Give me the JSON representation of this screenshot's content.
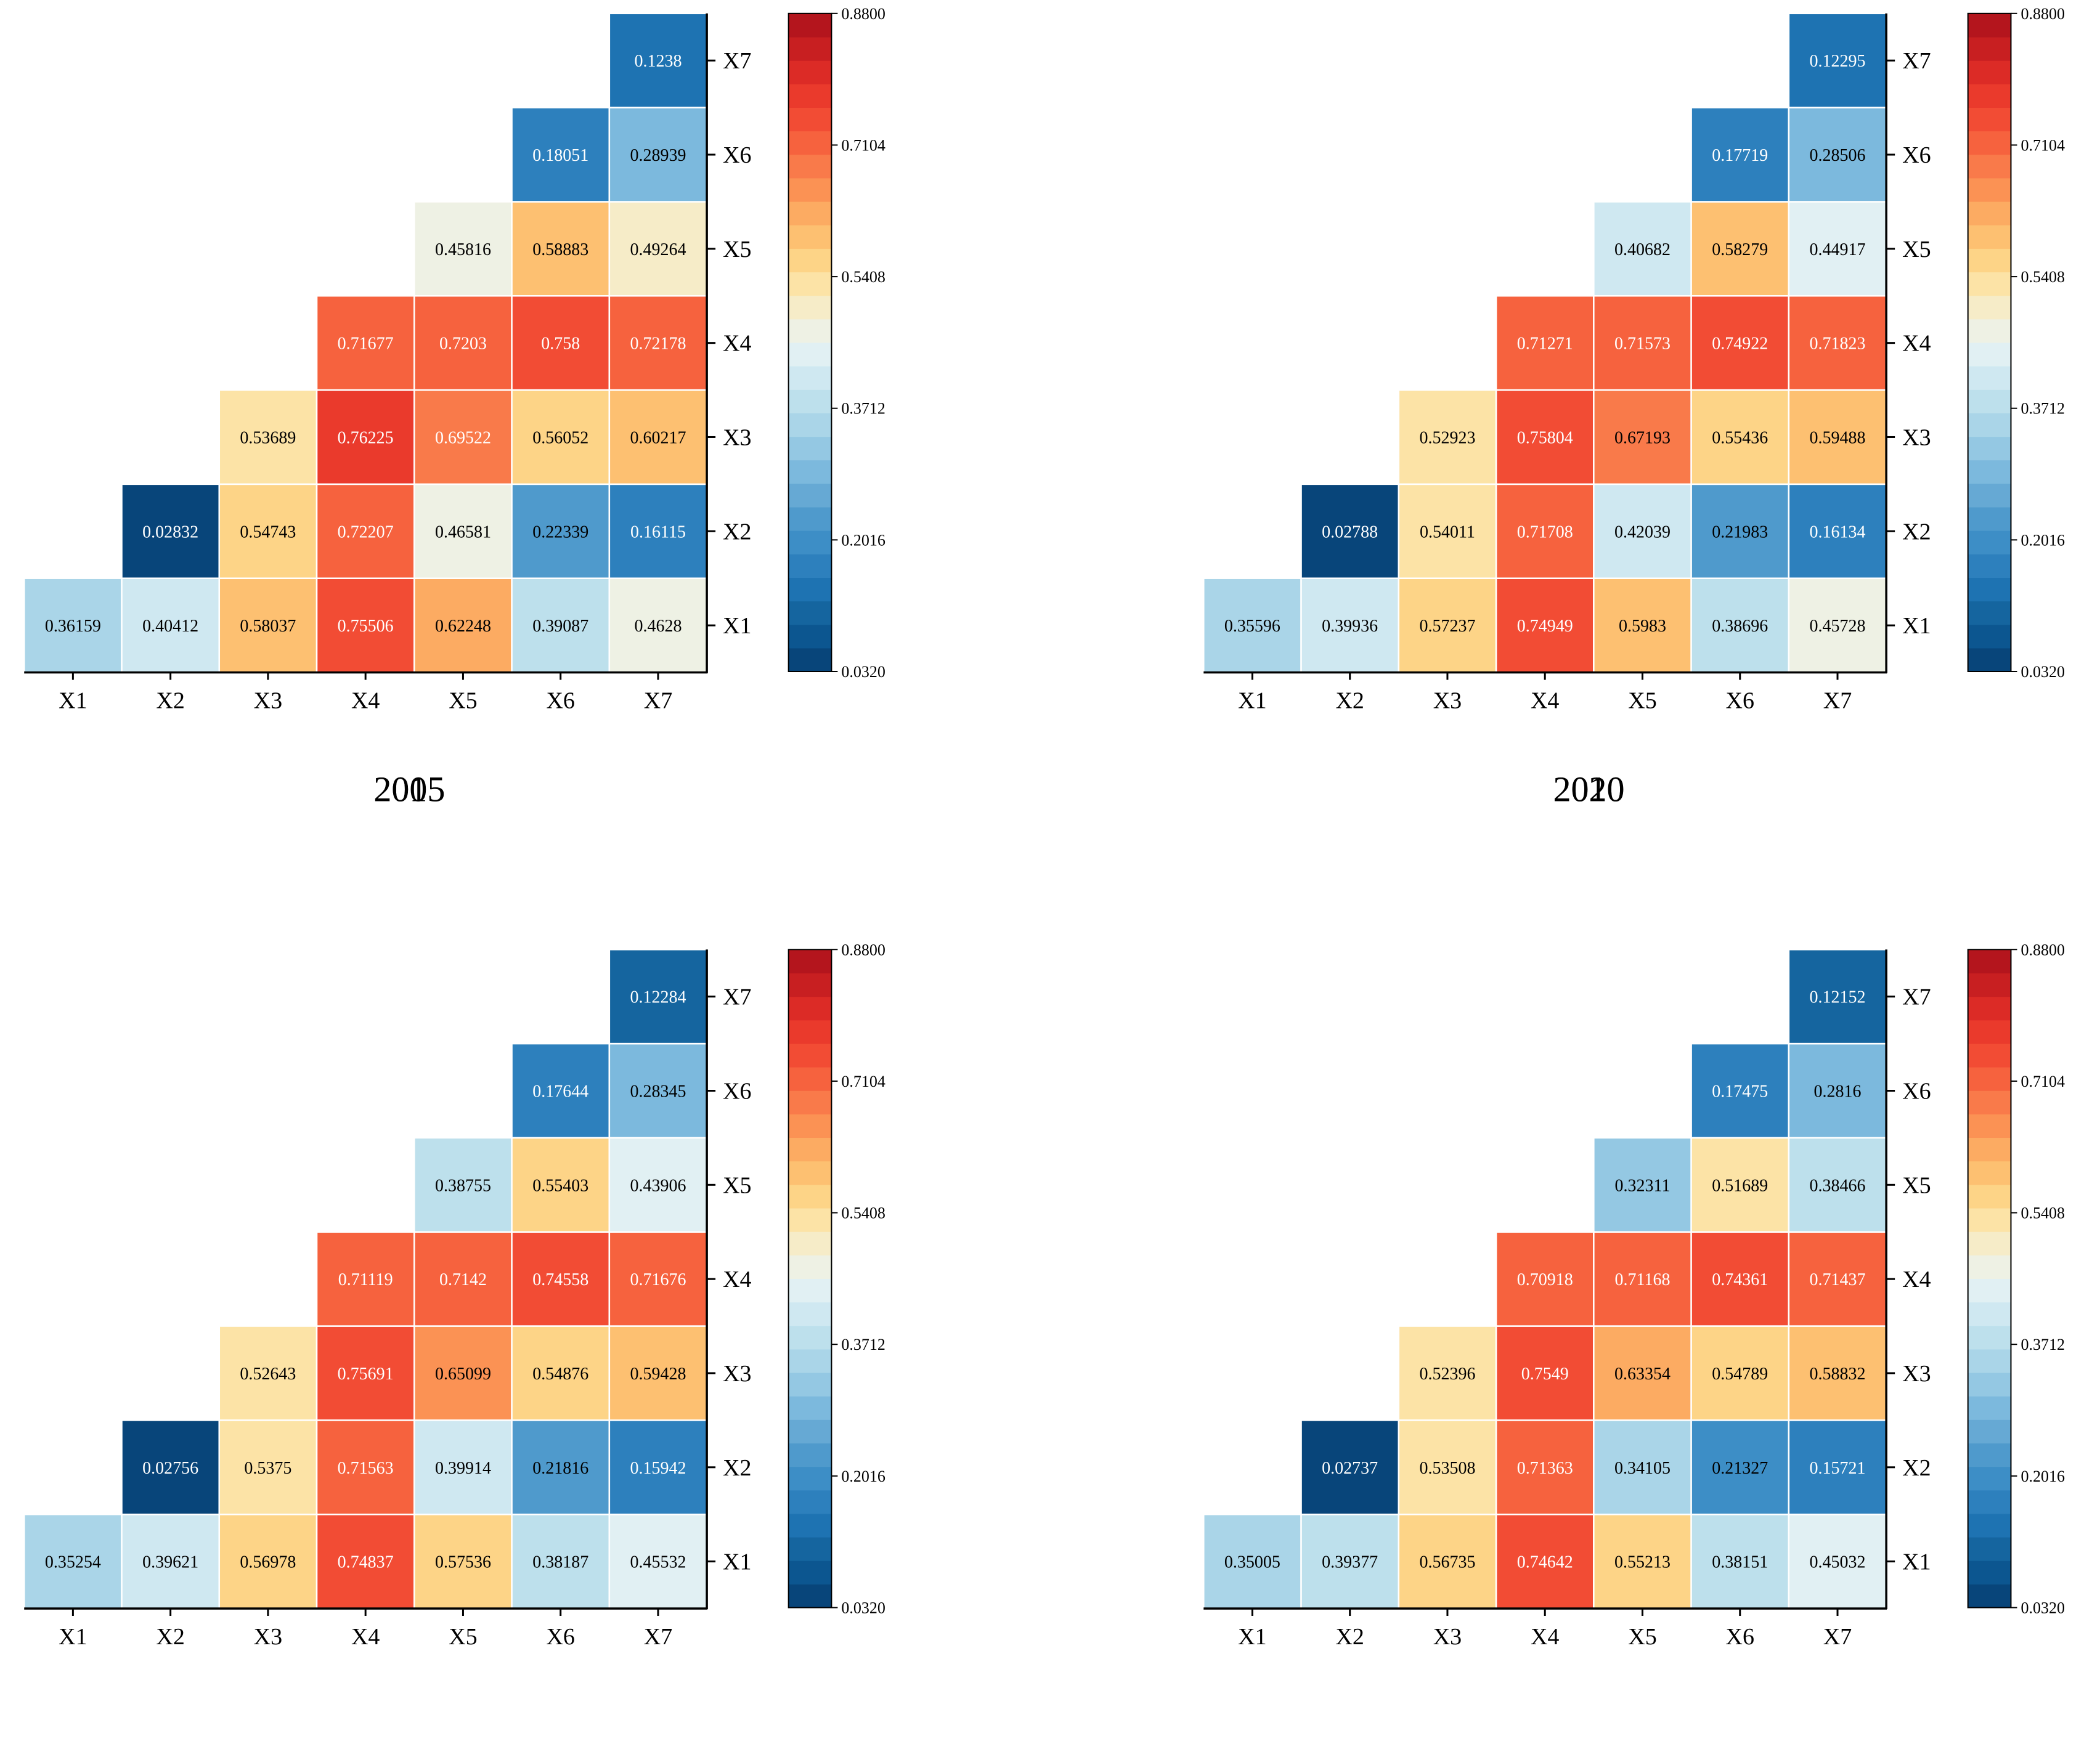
{
  "chart_data": [
    {
      "type": "heatmap",
      "title": "2005",
      "row_labels": [
        "X1",
        "X2",
        "X3",
        "X4",
        "X5",
        "X6",
        "X7"
      ],
      "col_labels": [
        "X1",
        "X2",
        "X3",
        "X4",
        "X5",
        "X6",
        "X7"
      ],
      "rows": [
        [
          "0.36159",
          "0.40412",
          "0.58037",
          "0.75506",
          "0.62248",
          "0.39087",
          "0.4628"
        ],
        [
          "0.02832",
          "0.54743",
          "0.72207",
          "0.46581",
          "0.22339",
          "0.16115"
        ],
        [
          "0.53689",
          "0.76225",
          "0.69522",
          "0.56052",
          "0.60217"
        ],
        [
          "0.71677",
          "0.7203",
          "0.758",
          "0.72178"
        ],
        [
          "0.45816",
          "0.58883",
          "0.49264"
        ],
        [
          "0.18051",
          "0.28939"
        ],
        [
          "0.1238"
        ]
      ],
      "colorbar": {
        "min": 0.032,
        "max": 0.88,
        "ticks": [
          "0.0320",
          "0.2016",
          "0.3712",
          "0.5408",
          "0.7104",
          "0.8800"
        ]
      }
    },
    {
      "type": "heatmap",
      "title": "2010",
      "row_labels": [
        "X1",
        "X2",
        "X3",
        "X4",
        "X5",
        "X6",
        "X7"
      ],
      "col_labels": [
        "X1",
        "X2",
        "X3",
        "X4",
        "X5",
        "X6",
        "X7"
      ],
      "rows": [
        [
          "0.35596",
          "0.39936",
          "0.57237",
          "0.74949",
          "0.5983",
          "0.38696",
          "0.45728"
        ],
        [
          "0.02788",
          "0.54011",
          "0.71708",
          "0.42039",
          "0.21983",
          "0.16134"
        ],
        [
          "0.52923",
          "0.75804",
          "0.67193",
          "0.55436",
          "0.59488"
        ],
        [
          "0.71271",
          "0.71573",
          "0.74922",
          "0.71823"
        ],
        [
          "0.40682",
          "0.58279",
          "0.44917"
        ],
        [
          "0.17719",
          "0.28506"
        ],
        [
          "0.12295"
        ]
      ],
      "colorbar": {
        "min": 0.032,
        "max": 0.88,
        "ticks": [
          "0.0320",
          "0.2016",
          "0.3712",
          "0.5408",
          "0.7104",
          "0.8800"
        ]
      }
    },
    {
      "type": "heatmap",
      "title": "2015",
      "row_labels": [
        "X1",
        "X2",
        "X3",
        "X4",
        "X5",
        "X6",
        "X7"
      ],
      "col_labels": [
        "X1",
        "X2",
        "X3",
        "X4",
        "X5",
        "X6",
        "X7"
      ],
      "rows": [
        [
          "0.35254",
          "0.39621",
          "0.56978",
          "0.74837",
          "0.57536",
          "0.38187",
          "0.45532"
        ],
        [
          "0.02756",
          "0.5375",
          "0.71563",
          "0.39914",
          "0.21816",
          "0.15942"
        ],
        [
          "0.52643",
          "0.75691",
          "0.65099",
          "0.54876",
          "0.59428"
        ],
        [
          "0.71119",
          "0.7142",
          "0.74558",
          "0.71676"
        ],
        [
          "0.38755",
          "0.55403",
          "0.43906"
        ],
        [
          "0.17644",
          "0.28345"
        ],
        [
          "0.12284"
        ]
      ],
      "colorbar": {
        "min": 0.032,
        "max": 0.88,
        "ticks": [
          "0.0320",
          "0.2016",
          "0.3712",
          "0.5408",
          "0.7104",
          "0.8800"
        ]
      }
    },
    {
      "type": "heatmap",
      "title": "2020",
      "row_labels": [
        "X1",
        "X2",
        "X3",
        "X4",
        "X5",
        "X6",
        "X7"
      ],
      "col_labels": [
        "X1",
        "X2",
        "X3",
        "X4",
        "X5",
        "X6",
        "X7"
      ],
      "rows": [
        [
          "0.35005",
          "0.39377",
          "0.56735",
          "0.74642",
          "0.55213",
          "0.38151",
          "0.45032"
        ],
        [
          "0.02737",
          "0.53508",
          "0.71363",
          "0.34105",
          "0.21327",
          "0.15721"
        ],
        [
          "0.52396",
          "0.7549",
          "0.63354",
          "0.54789",
          "0.58832"
        ],
        [
          "0.70918",
          "0.71168",
          "0.74361",
          "0.71437"
        ],
        [
          "0.32311",
          "0.51689",
          "0.38466"
        ],
        [
          "0.17475",
          "0.2816"
        ],
        [
          "0.12152"
        ]
      ],
      "colorbar": {
        "min": 0.032,
        "max": 0.88,
        "ticks": [
          "0.0320",
          "0.2016",
          "0.3712",
          "0.5408",
          "0.7104",
          "0.8800"
        ]
      }
    }
  ]
}
